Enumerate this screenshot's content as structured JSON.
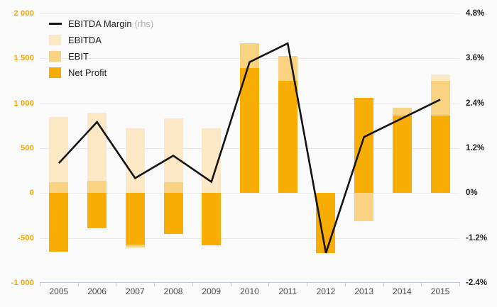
{
  "legend": {
    "margin_label": "EBITDA Margin",
    "margin_suffix": "(rhs)",
    "ebitda_label": "EBITDA",
    "ebit_label": "EBIT",
    "net_profit_label": "Net Profit"
  },
  "colors": {
    "ebitda": "#FCE8C4",
    "ebit": "#FAD382",
    "net_profit": "#F8AD05",
    "margin_line": "#141414",
    "left_axis_labels": "#F0A50A",
    "right_axis_labels": "#1F1F1F",
    "year_labels": "#4D4D4D",
    "gridline": "#E9E9E6",
    "axis_line": "#C7CEDF",
    "background": "#FAFAFA"
  },
  "chart_data": {
    "type": "bar",
    "subtype": "overlapping bars with secondary-axis line",
    "categories": [
      "2005",
      "2006",
      "2007",
      "2008",
      "2009",
      "2010",
      "2011",
      "2012",
      "2013",
      "2014",
      "2015"
    ],
    "series": [
      {
        "name": "EBITDA",
        "type": "bar",
        "axis": "left",
        "color": "#FCE8C4",
        "values": [
          850,
          895,
          720,
          830,
          720,
          null,
          null,
          null,
          null,
          null,
          1320
        ]
      },
      {
        "name": "EBIT",
        "type": "bar",
        "axis": "left",
        "color": "#FAD382",
        "values": [
          120,
          135,
          -605,
          120,
          null,
          1670,
          1530,
          null,
          -310,
          950,
          1250
        ]
      },
      {
        "name": "Net Profit",
        "type": "bar",
        "axis": "left",
        "color": "#F8AD05",
        "values": [
          -650,
          -390,
          -575,
          -455,
          -580,
          1390,
          1250,
          -670,
          1060,
          860,
          860
        ]
      },
      {
        "name": "EBITDA Margin (rhs)",
        "type": "line",
        "axis": "right",
        "color": "#141414",
        "values": [
          0.8,
          1.9,
          0.4,
          1.0,
          0.3,
          3.5,
          4.0,
          -1.6,
          1.5,
          2.0,
          2.5
        ]
      }
    ],
    "left_axis": {
      "min": -1000,
      "max": 2000,
      "step": 500,
      "tick_labels": [
        "2 000",
        "1 500",
        "1 000",
        "500",
        "0",
        "-500",
        "-1 000"
      ]
    },
    "right_axis": {
      "min": -2.4,
      "max": 4.8,
      "step": 1.2,
      "tick_labels": [
        "4.8%",
        "3.6%",
        "2.4%",
        "1.2%",
        "0%",
        "-1.2%",
        "-2.4%"
      ]
    },
    "legend_position": "top-left",
    "grid": "horizontal only",
    "note_bars_overlap": "bars are overlapping (drawn EBITDA, then EBIT, then Net Profit); null = value hidden behind a later-drawn series"
  }
}
